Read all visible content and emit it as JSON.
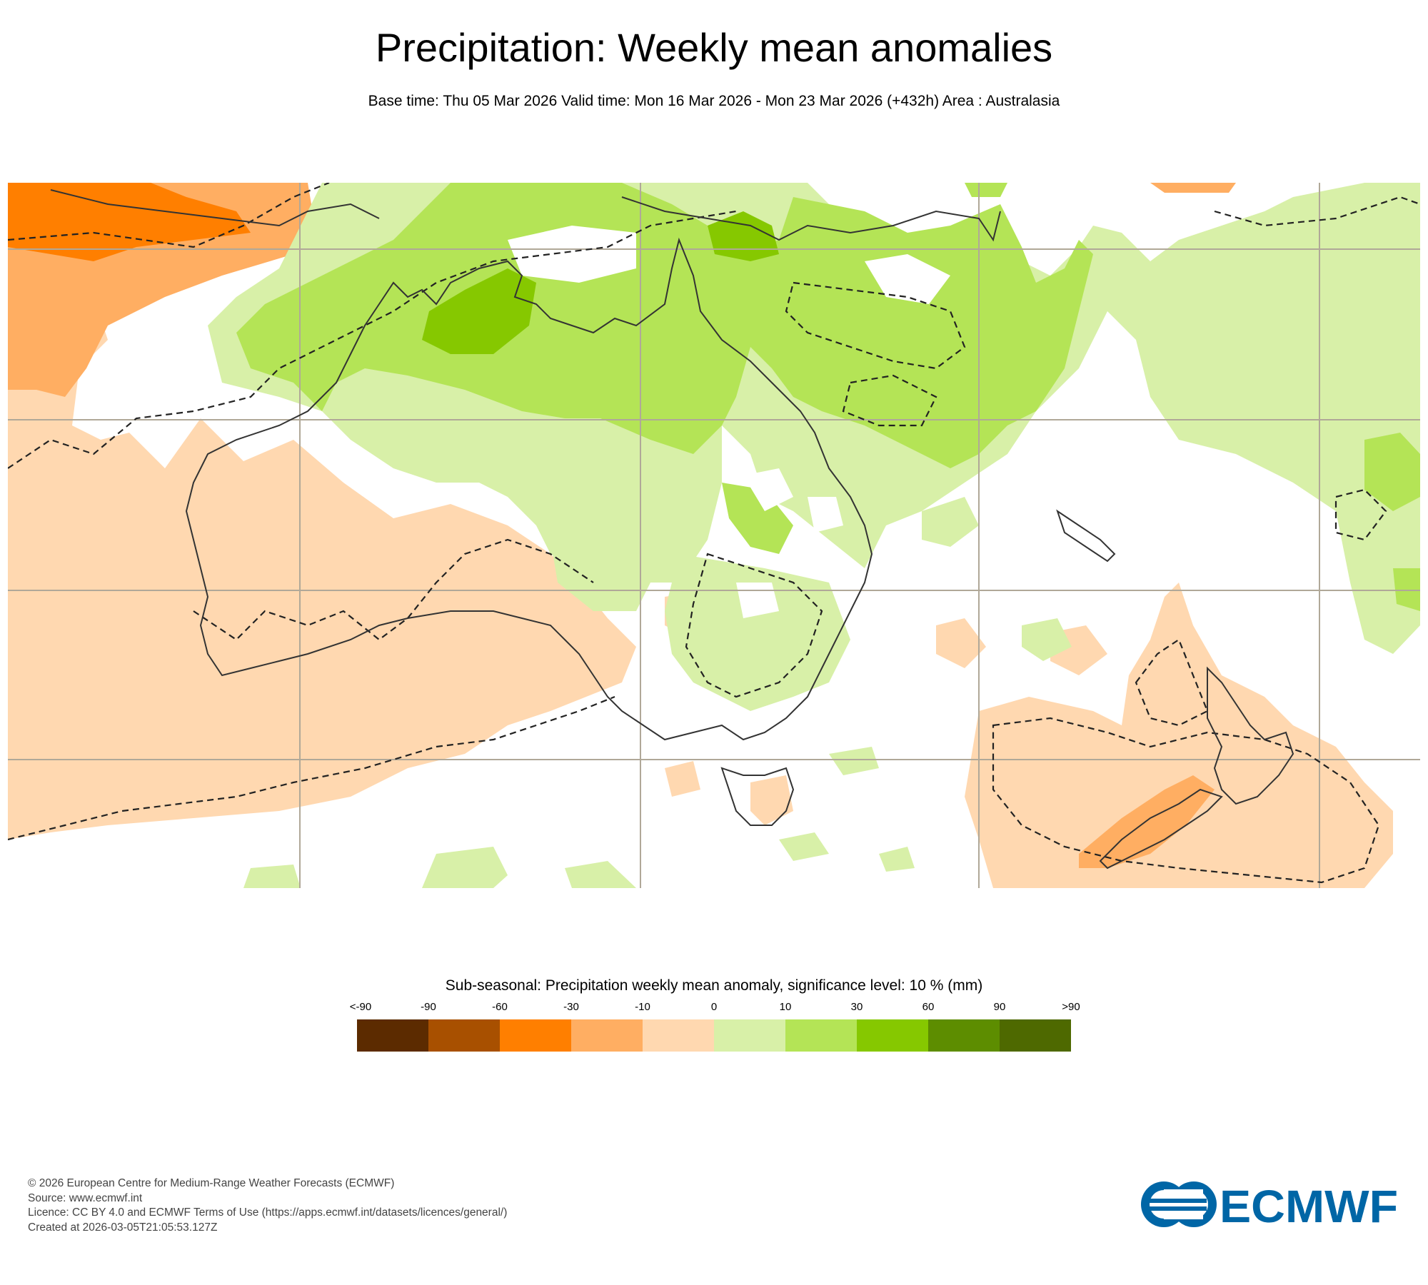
{
  "header": {
    "title": "Precipitation: Weekly mean anomalies",
    "subtitle": "Base time: Thu 05 Mar 2026 Valid time: Mon 16 Mar 2026 - Mon 23 Mar 2026 (+432h) Area : Australasia"
  },
  "map": {
    "area": "Australasia",
    "colors": {
      "ocean_background": "#ffffff",
      "gridline": "#b0a898",
      "coastline": "#333333",
      "significance_contour": "#222222"
    }
  },
  "legend": {
    "title": "Sub-seasonal: Precipitation weekly mean anomaly, significance level: 10 % (mm)",
    "tick_labels": [
      "<-90",
      "-90",
      "-60",
      "-30",
      "-10",
      "0",
      "10",
      "30",
      "60",
      "90",
      ">90"
    ],
    "colors": [
      "#5c2b00",
      "#a85000",
      "#ff7f00",
      "#ffae62",
      "#ffd8b0",
      "#d8f0a8",
      "#b4e456",
      "#86c800",
      "#5d8d00",
      "#4e6900"
    ]
  },
  "footer": {
    "lines": [
      "© 2026 European Centre for Medium-Range Weather Forecasts (ECMWF)",
      "Source: www.ecmwf.int",
      "Licence: CC BY 4.0 and ECMWF Terms of Use (https://apps.ecmwf.int/datasets/licences/general/)",
      "Created at 2026-03-05T21:05:53.127Z"
    ]
  },
  "logo": {
    "text": "ECMWF",
    "color": "#0066a6",
    "icon": "ecmwf-logo-icon"
  }
}
